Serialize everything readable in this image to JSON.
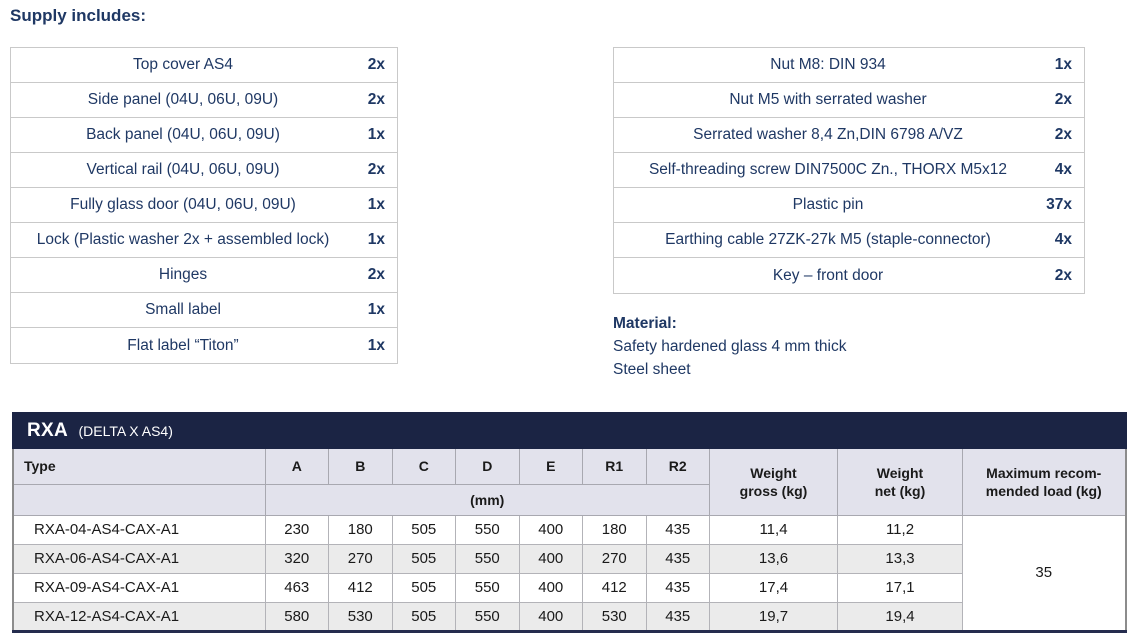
{
  "page": {
    "heading": "Supply includes:"
  },
  "colors": {
    "navy_text": "#1f3864",
    "title_bar": "#1b2444",
    "header_bg": "#e2e2ec",
    "alt_row_bg": "#ebebeb",
    "border_light": "#c9c9c9"
  },
  "supply_left": {
    "items": [
      {
        "label": "Top cover AS4",
        "qty": "2x"
      },
      {
        "label": "Side panel (04U, 06U, 09U)",
        "qty": "2x"
      },
      {
        "label": "Back panel (04U, 06U, 09U)",
        "qty": "1x"
      },
      {
        "label": "Vertical rail (04U, 06U, 09U)",
        "qty": "2x"
      },
      {
        "label": "Fully glass door (04U, 06U, 09U)",
        "qty": "1x"
      },
      {
        "label": "Lock (Plastic washer 2x + assembled lock)",
        "qty": "1x"
      },
      {
        "label": "Hinges",
        "qty": "2x"
      },
      {
        "label": "Small label",
        "qty": "1x"
      },
      {
        "label": "Flat label “Titon”",
        "qty": "1x"
      }
    ]
  },
  "supply_right": {
    "items": [
      {
        "label": "Nut M8: DIN 934",
        "qty": "1x"
      },
      {
        "label": "Nut M5 with serrated washer",
        "qty": "2x"
      },
      {
        "label": "Serrated washer 8,4 Zn,DIN 6798 A/VZ",
        "qty": "2x"
      },
      {
        "label": "Self-threading screw DIN7500C Zn., THORX M5x12",
        "qty": "4x"
      },
      {
        "label": "Plastic pin",
        "qty": "37x"
      },
      {
        "label": "Earthing cable 27ZK-27k M5 (staple-connector)",
        "qty": "4x"
      },
      {
        "label": "Key – front door",
        "qty": "2x"
      }
    ]
  },
  "material": {
    "heading": "Material:",
    "lines": [
      "Safety hardened glass 4 mm thick",
      "Steel sheet"
    ]
  },
  "spec_table": {
    "title": "RXA",
    "subtitle": "(DELTA X AS4)",
    "headers": {
      "type": "Type",
      "dims": [
        "A",
        "B",
        "C",
        "D",
        "E",
        "R1",
        "R2"
      ],
      "unit": "(mm)",
      "weight_gross": "Weight\ngross (kg)",
      "weight_net": "Weight\nnet (kg)",
      "max_load": "Maximum recom-\nmended load (kg)"
    },
    "rows": [
      {
        "type": "RXA-04-AS4-CAX-A1",
        "dims": [
          "230",
          "180",
          "505",
          "550",
          "400",
          "180",
          "435"
        ],
        "gross": "11,4",
        "net": "11,2"
      },
      {
        "type": "RXA-06-AS4-CAX-A1",
        "dims": [
          "320",
          "270",
          "505",
          "550",
          "400",
          "270",
          "435"
        ],
        "gross": "13,6",
        "net": "13,3"
      },
      {
        "type": "RXA-09-AS4-CAX-A1",
        "dims": [
          "463",
          "412",
          "505",
          "550",
          "400",
          "412",
          "435"
        ],
        "gross": "17,4",
        "net": "17,1"
      },
      {
        "type": "RXA-12-AS4-CAX-A1",
        "dims": [
          "580",
          "530",
          "505",
          "550",
          "400",
          "530",
          "435"
        ],
        "gross": "19,7",
        "net": "19,4"
      }
    ],
    "max_load_value": "35"
  }
}
